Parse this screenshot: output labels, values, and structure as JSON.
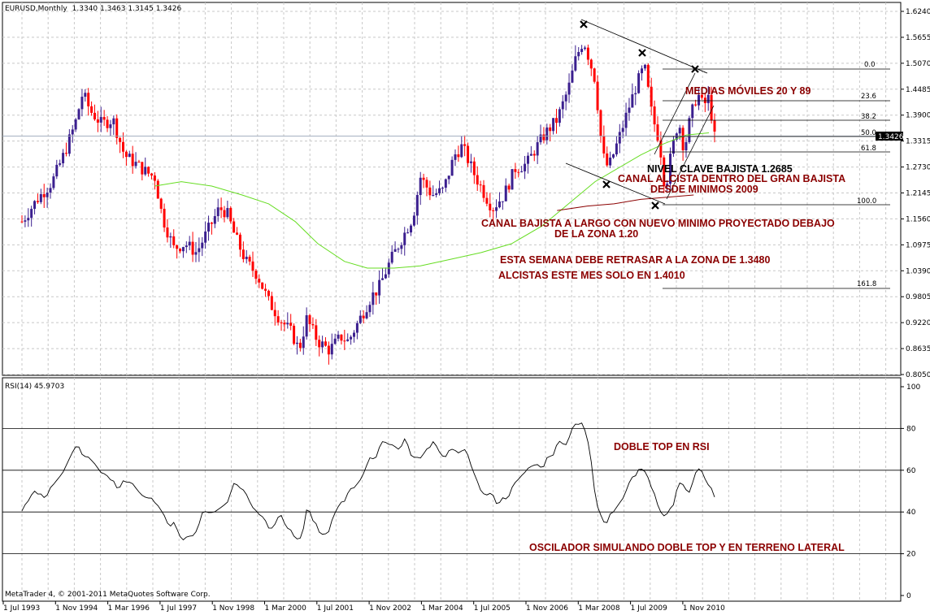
{
  "chart_data": [
    {
      "type": "candlestick",
      "title": "EURUSD,Monthly",
      "ohlc_last": "1.3340 1.3463 1.3145 1.3426",
      "current_price_label": "1.3426",
      "ylim": [
        0.805,
        1.624
      ],
      "y_ticks": [
        "1.6240",
        "1.5655",
        "1.5070",
        "1.4485",
        "1.3900",
        "1.3315",
        "1.2730",
        "1.2145",
        "1.1560",
        "1.0975",
        "1.0390",
        "0.9805",
        "0.9220",
        "0.8635",
        "0.8050"
      ],
      "x_ticks": [
        "1 Jul 1993",
        "1 Nov 1994",
        "1 Mar 1996",
        "1 Jul 1997",
        "1 Nov 1998",
        "1 Mar 2000",
        "1 Jul 2001",
        "1 Nov 2002",
        "1 Mar 2004",
        "1 Jul 2005",
        "1 Nov 2006",
        "1 Mar 2008",
        "1 Jul 2009",
        "1 Nov 2010"
      ],
      "close_path": [
        [
          1993.5,
          1.15
        ],
        [
          1993.9,
          1.2
        ],
        [
          1994.3,
          1.24
        ],
        [
          1994.6,
          1.3
        ],
        [
          1994.9,
          1.37
        ],
        [
          1995.1,
          1.44
        ],
        [
          1995.3,
          1.4
        ],
        [
          1995.6,
          1.37
        ],
        [
          1995.9,
          1.38
        ],
        [
          1996.2,
          1.3
        ],
        [
          1996.5,
          1.28
        ],
        [
          1996.8,
          1.26
        ],
        [
          1997.0,
          1.25
        ],
        [
          1997.2,
          1.16
        ],
        [
          1997.5,
          1.09
        ],
        [
          1997.8,
          1.1
        ],
        [
          1998.1,
          1.08
        ],
        [
          1998.4,
          1.13
        ],
        [
          1998.7,
          1.18
        ],
        [
          1998.9,
          1.17
        ],
        [
          1999.1,
          1.12
        ],
        [
          1999.4,
          1.06
        ],
        [
          1999.7,
          1.03
        ],
        [
          2000.0,
          0.97
        ],
        [
          2000.3,
          0.93
        ],
        [
          2000.6,
          0.9
        ],
        [
          2000.8,
          0.86
        ],
        [
          2001.0,
          0.93
        ],
        [
          2001.3,
          0.88
        ],
        [
          2001.6,
          0.86
        ],
        [
          2001.9,
          0.89
        ],
        [
          2002.1,
          0.88
        ],
        [
          2002.4,
          0.93
        ],
        [
          2002.7,
          0.98
        ],
        [
          2002.9,
          1.0
        ],
        [
          2003.2,
          1.06
        ],
        [
          2003.5,
          1.11
        ],
        [
          2003.8,
          1.16
        ],
        [
          2004.0,
          1.25
        ],
        [
          2004.3,
          1.21
        ],
        [
          2004.6,
          1.22
        ],
        [
          2004.9,
          1.3
        ],
        [
          2005.1,
          1.32
        ],
        [
          2005.4,
          1.26
        ],
        [
          2005.7,
          1.21
        ],
        [
          2005.9,
          1.18
        ],
        [
          2006.2,
          1.21
        ],
        [
          2006.5,
          1.27
        ],
        [
          2006.8,
          1.28
        ],
        [
          2007.0,
          1.31
        ],
        [
          2007.3,
          1.35
        ],
        [
          2007.6,
          1.38
        ],
        [
          2007.9,
          1.45
        ],
        [
          2008.1,
          1.52
        ],
        [
          2008.3,
          1.56
        ],
        [
          2008.6,
          1.47
        ],
        [
          2008.8,
          1.3
        ],
        [
          2008.95,
          1.27
        ],
        [
          2009.2,
          1.33
        ],
        [
          2009.5,
          1.41
        ],
        [
          2009.7,
          1.46
        ],
        [
          2009.9,
          1.5
        ],
        [
          2010.1,
          1.39
        ],
        [
          2010.3,
          1.33
        ],
        [
          2010.45,
          1.22
        ],
        [
          2010.6,
          1.3
        ],
        [
          2010.8,
          1.38
        ],
        [
          2010.95,
          1.31
        ],
        [
          2011.1,
          1.38
        ],
        [
          2011.3,
          1.44
        ],
        [
          2011.45,
          1.41
        ],
        [
          2011.6,
          1.43
        ],
        [
          2011.75,
          1.34
        ]
      ],
      "ma_series": [
        {
          "name": "MA20",
          "points": [
            [
              1997.0,
              1.23
            ],
            [
              1997.7,
              1.24
            ],
            [
              1998.5,
              1.23
            ],
            [
              1999.3,
              1.21
            ],
            [
              2000.0,
              1.19
            ],
            [
              2000.7,
              1.15
            ],
            [
              2001.3,
              1.1
            ],
            [
              2002.0,
              1.06
            ],
            [
              2002.6,
              1.045
            ],
            [
              2003.3,
              1.045
            ],
            [
              2004.0,
              1.05
            ],
            [
              2004.8,
              1.065
            ],
            [
              2005.6,
              1.08
            ],
            [
              2006.4,
              1.1
            ],
            [
              2007.2,
              1.14
            ],
            [
              2007.9,
              1.19
            ],
            [
              2008.6,
              1.24
            ],
            [
              2009.2,
              1.27
            ],
            [
              2009.8,
              1.3
            ],
            [
              2010.4,
              1.325
            ],
            [
              2011.0,
              1.345
            ],
            [
              2011.6,
              1.35
            ]
          ]
        },
        {
          "name": "MA89",
          "points": [
            [
              2007.6,
              1.175
            ],
            [
              2008.4,
              1.185
            ],
            [
              2009.1,
              1.19
            ],
            [
              2009.8,
              1.2
            ],
            [
              2010.5,
              1.205
            ],
            [
              2011.2,
              1.21
            ]
          ]
        }
      ],
      "fibonacci_levels": [
        "0.0",
        "23.6",
        "38.2",
        "50.0",
        "61.8",
        "100.0",
        "161.8"
      ],
      "annotations": [
        "MEDIAS MÓVILES 20 Y 89",
        "NIVEL CLAVE BAJISTA 1.2685",
        "CANAL ALCISTA DENTRO DEL GRAN BAJISTA",
        "DESDE MINIMOS 2009",
        "CANAL BAJISTA  A LARGO CON NUEVO MINIMO PROYECTADO DEBAJO",
        "DE LA ZONA 1.20",
        "ESTA SEMANA DEBE RETRASAR A LA ZONA DE 1.3480",
        "ALCISTAS ESTE MES SOLO EN 1.4010"
      ]
    },
    {
      "type": "line",
      "title": "RSI(14) 45.9703",
      "ylim": [
        0,
        100
      ],
      "y_ticks": [
        "100",
        "80",
        "60",
        "40",
        "20",
        "0"
      ],
      "levels": [
        80,
        60,
        40,
        20
      ],
      "rsi_path": [
        [
          1993.5,
          40
        ],
        [
          1993.8,
          52
        ],
        [
          1994.1,
          46
        ],
        [
          1994.4,
          58
        ],
        [
          1994.7,
          64
        ],
        [
          1994.9,
          71
        ],
        [
          1995.1,
          67
        ],
        [
          1995.4,
          62
        ],
        [
          1995.7,
          57
        ],
        [
          1996.0,
          52
        ],
        [
          1996.3,
          54
        ],
        [
          1996.6,
          49
        ],
        [
          1996.9,
          47
        ],
        [
          1997.2,
          36
        ],
        [
          1997.5,
          32
        ],
        [
          1997.8,
          28
        ],
        [
          1998.1,
          32
        ],
        [
          1998.3,
          42
        ],
        [
          1998.6,
          40
        ],
        [
          1998.8,
          44
        ],
        [
          1999.1,
          55
        ],
        [
          1999.4,
          47
        ],
        [
          1999.7,
          40
        ],
        [
          2000.0,
          34
        ],
        [
          2000.3,
          38
        ],
        [
          2000.6,
          29
        ],
        [
          2000.8,
          24
        ],
        [
          2001.0,
          42
        ],
        [
          2001.2,
          33
        ],
        [
          2001.5,
          27
        ],
        [
          2001.8,
          44
        ],
        [
          2002.0,
          48
        ],
        [
          2002.3,
          55
        ],
        [
          2002.5,
          60
        ],
        [
          2002.8,
          68
        ],
        [
          2003.0,
          76
        ],
        [
          2003.3,
          70
        ],
        [
          2003.6,
          74
        ],
        [
          2003.8,
          63
        ],
        [
          2004.0,
          68
        ],
        [
          2004.3,
          75
        ],
        [
          2004.6,
          64
        ],
        [
          2004.9,
          72
        ],
        [
          2005.2,
          66
        ],
        [
          2005.5,
          52
        ],
        [
          2005.8,
          48
        ],
        [
          2006.0,
          44
        ],
        [
          2006.3,
          50
        ],
        [
          2006.6,
          56
        ],
        [
          2006.9,
          60
        ],
        [
          2007.2,
          62
        ],
        [
          2007.5,
          70
        ],
        [
          2007.8,
          75
        ],
        [
          2008.0,
          80
        ],
        [
          2008.2,
          84
        ],
        [
          2008.4,
          72
        ],
        [
          2008.6,
          45
        ],
        [
          2008.8,
          35
        ],
        [
          2009.0,
          40
        ],
        [
          2009.2,
          44
        ],
        [
          2009.5,
          55
        ],
        [
          2009.8,
          60
        ],
        [
          2010.0,
          55
        ],
        [
          2010.2,
          42
        ],
        [
          2010.4,
          35
        ],
        [
          2010.6,
          45
        ],
        [
          2010.8,
          55
        ],
        [
          2011.0,
          50
        ],
        [
          2011.2,
          60
        ],
        [
          2011.4,
          58
        ],
        [
          2011.6,
          50
        ],
        [
          2011.75,
          46
        ]
      ],
      "annotations": [
        "DOBLE TOP EN RSI",
        "OSCILADOR SIMULANDO DOBLE TOP Y EN TERRENO LATERAL"
      ]
    }
  ],
  "footer": {
    "copyright": "MetaTrader 4, © 2001-2011 MetaQuotes Software Corp."
  },
  "colors": {
    "bull": "#3b1f8f",
    "bear": "#ff0000",
    "ma20": "#66dd22",
    "ma89": "#8b0000",
    "grid": "#c8c8c8",
    "annotation": "#8b0000"
  }
}
